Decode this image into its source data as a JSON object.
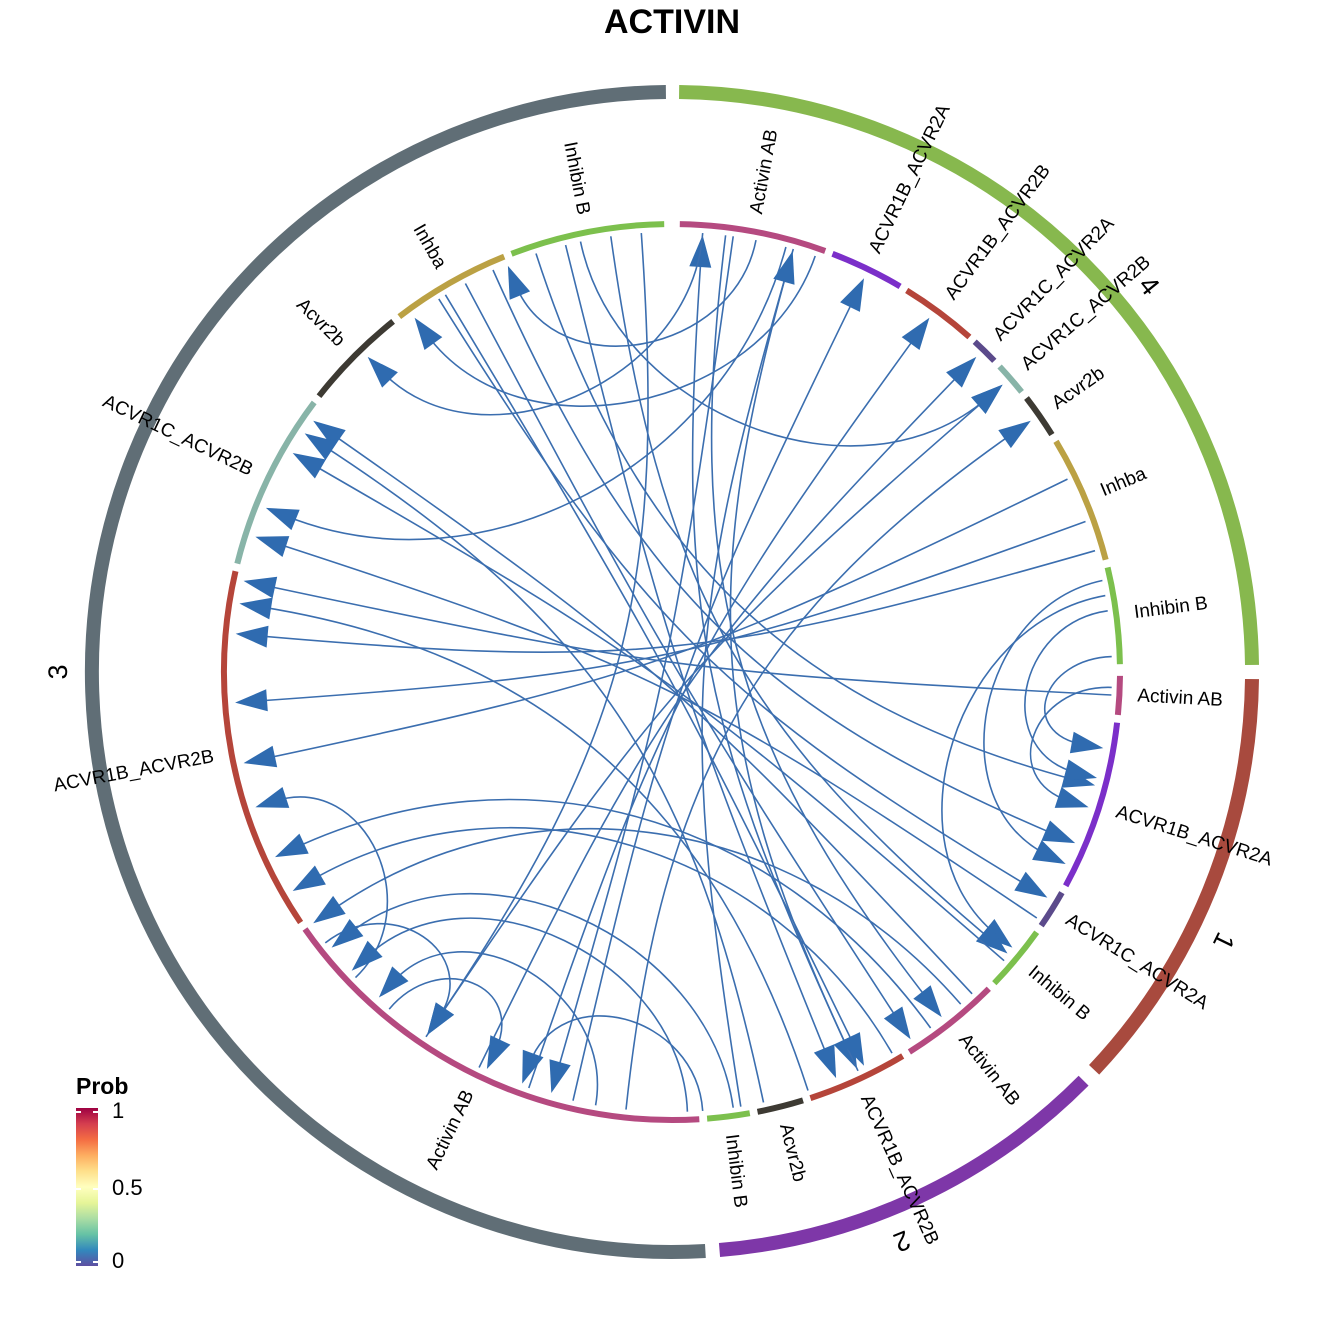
{
  "title": "ACTIVIN",
  "link_color": "#3B6EAF",
  "arrow_color": "#2F6BB0",
  "groups": [
    {
      "name": "1",
      "color": "#A84A3E",
      "segments": [
        {
          "label": "Activin AB",
          "color": "#B54A80"
        },
        {
          "label": "ACVR1B_ACVR2A",
          "color": "#7B2FC9"
        },
        {
          "label": "ACVR1C_ACVR2A",
          "color": "#5B4A8B"
        },
        {
          "label": "Inhibin B",
          "color": "#7CC04D"
        }
      ]
    },
    {
      "name": "2",
      "color": "#7E37A8",
      "segments": [
        {
          "label": "Activin AB",
          "color": "#B54A80"
        },
        {
          "label": "ACVR1B_ACVR2B",
          "color": "#B5453A"
        },
        {
          "label": "Acvr2b",
          "color": "#3D3A33"
        },
        {
          "label": "Inhibin B",
          "color": "#7CC04D"
        }
      ]
    },
    {
      "name": "3",
      "color": "#606E76",
      "segments": [
        {
          "label": "Activin AB",
          "color": "#B54A80"
        },
        {
          "label": "ACVR1B_ACVR2B",
          "color": "#B5453A"
        },
        {
          "label": "ACVR1C_ACVR2B",
          "color": "#88B4A8"
        },
        {
          "label": "Acvr2b",
          "color": "#3D3A33"
        },
        {
          "label": "Inhba",
          "color": "#BBA144"
        },
        {
          "label": "Inhibin B",
          "color": "#7CC04D"
        }
      ]
    },
    {
      "name": "4",
      "color": "#87B84E",
      "segments": [
        {
          "label": "Activin AB",
          "color": "#B54A80"
        },
        {
          "label": "ACVR1B_ACVR2A",
          "color": "#7B2FC9"
        },
        {
          "label": "ACVR1B_ACVR2B",
          "color": "#B5453A"
        },
        {
          "label": "ACVR1C_ACVR2A",
          "color": "#5B4A8B"
        },
        {
          "label": "ACVR1C_ACVR2B",
          "color": "#88B4A8"
        },
        {
          "label": "Acvr2b",
          "color": "#3D3A33"
        },
        {
          "label": "Inhba",
          "color": "#BBA144"
        },
        {
          "label": "Inhibin B",
          "color": "#7CC04D"
        }
      ]
    }
  ],
  "legend": {
    "title": "Prob",
    "ticks": [
      "1",
      "0.5",
      "0"
    ],
    "colors": [
      "#9E0142",
      "#D53E4F",
      "#F46D43",
      "#FDAE61",
      "#FEE08B",
      "#FFFFBF",
      "#E6F598",
      "#ABDDA4",
      "#66C2A5",
      "#3288BD",
      "#5E4FA2"
    ]
  }
}
